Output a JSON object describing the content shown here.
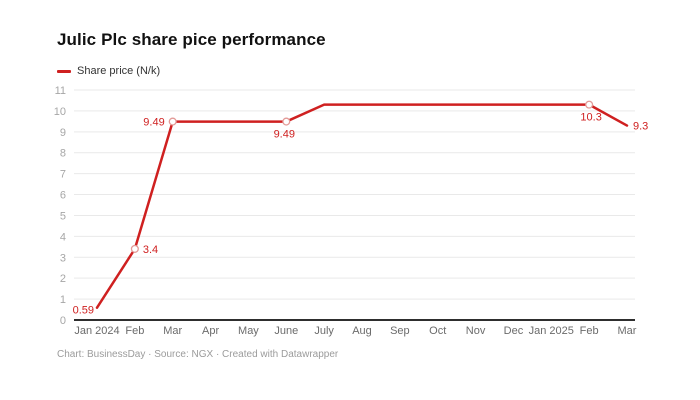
{
  "header": {
    "title": "Julic Plc share pice performance"
  },
  "legend": {
    "items": [
      {
        "label": "Share price (N/k)",
        "color": "#cf2020"
      }
    ]
  },
  "footer": {
    "credit": "Chart: BusinessDay · Source: NGX · Created with Datawrapper"
  },
  "colors": {
    "line": "#cf2020",
    "marker_stroke": "#e39a97",
    "grid": "#e9e9e9",
    "axis_baseline": "#2e2e2e",
    "ytick_text": "#a6a6a6",
    "xtick_text": "#6b6b6b",
    "footer_text": "#9b9b9b"
  },
  "chart_data": {
    "type": "line",
    "title": "Julic Plc share pice performance",
    "xlabel": "",
    "ylabel": "",
    "ylim": [
      0,
      11
    ],
    "yticks": [
      0,
      1,
      2,
      3,
      4,
      5,
      6,
      7,
      8,
      9,
      10,
      11
    ],
    "grid": "horizontal",
    "legend_position": "top-left",
    "categories": [
      "Jan 2024",
      "Feb",
      "Mar",
      "Apr",
      "May",
      "June",
      "July",
      "Aug",
      "Sep",
      "Oct",
      "Nov",
      "Dec",
      "Jan 2025",
      "Feb",
      "Mar"
    ],
    "series": [
      {
        "name": "Share price (N/k)",
        "color": "#cf2020",
        "values": [
          0.59,
          3.4,
          9.49,
          9.49,
          9.49,
          9.49,
          10.3,
          10.3,
          10.3,
          10.3,
          10.3,
          10.3,
          10.3,
          10.3,
          9.3
        ]
      }
    ],
    "point_labels": [
      {
        "index": 0,
        "text": "0.59"
      },
      {
        "index": 1,
        "text": "3.4"
      },
      {
        "index": 2,
        "text": "9.49"
      },
      {
        "index": 5,
        "text": "9.49"
      },
      {
        "index": 13,
        "text": "10.3"
      },
      {
        "index": 14,
        "text": "9.3"
      }
    ],
    "marker_indices": [
      1,
      2,
      5,
      13
    ]
  }
}
